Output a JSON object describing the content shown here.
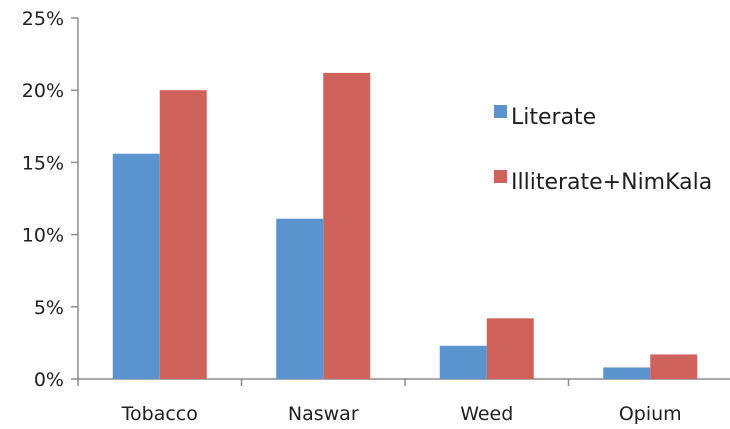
{
  "chart_data": {
    "type": "bar",
    "categories": [
      "Tobacco",
      "Naswar",
      "Weed",
      "Opium"
    ],
    "series": [
      {
        "name": "Literate",
        "values": [
          15.6,
          11.1,
          2.3,
          0.8
        ],
        "color": "#5b93cf"
      },
      {
        "name": "Illiterate+NimKala",
        "values": [
          20.0,
          21.2,
          4.2,
          1.7
        ],
        "color": "#cf625b"
      }
    ],
    "y_ticks": [
      "0%",
      "5%",
      "10%",
      "15%",
      "20%",
      "25%"
    ],
    "ylim": [
      0,
      25
    ],
    "y_tick_step": 5,
    "grid": false,
    "legend_position": "right",
    "axis_color": "#8c8c8c"
  }
}
